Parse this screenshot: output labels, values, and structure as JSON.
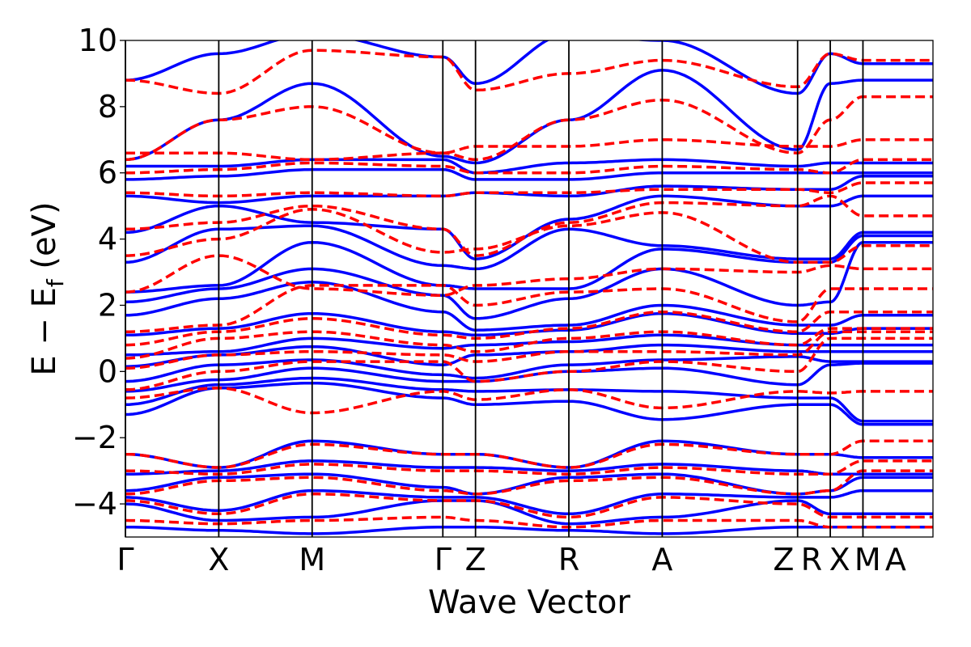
{
  "chart_data": {
    "type": "line",
    "title": "",
    "xlabel": "Wave Vector",
    "ylabel": "E − E_f (eV)",
    "ylabel_main": "E − E",
    "ylabel_sub": "f",
    "ylabel_unit": " (eV)",
    "ylim": [
      -5,
      10
    ],
    "grid": false,
    "legend": "none",
    "y_ticks": [
      -4,
      -2,
      0,
      2,
      4,
      6,
      8,
      10
    ],
    "y_tick_labels": [
      "−4",
      "−2",
      "0",
      "2",
      "4",
      "6",
      "8",
      "10"
    ],
    "kpoint_positions": [
      0,
      1,
      2,
      3.4,
      3.75,
      4.75,
      5.75,
      7.2,
      7.55,
      7.9
    ],
    "kpoint_labels": [
      "Γ",
      "X",
      "M",
      "Γ",
      "Z",
      "R",
      "A",
      "Z",
      "R",
      "X",
      "M",
      "A"
    ],
    "segments": [
      [
        0,
        1
      ],
      [
        1,
        2
      ],
      [
        2,
        3.4
      ],
      [
        3.4,
        3.75
      ],
      [
        3.75,
        4.75
      ],
      [
        4.75,
        5.75
      ],
      [
        5.75,
        7.2
      ],
      [
        7.55,
        7.9
      ],
      [
        7.9,
        7.9
      ]
    ],
    "colors": {
      "series_a": "#0000ff",
      "series_b": "#ff0000"
    },
    "series": [
      {
        "style": "solid",
        "color": "#0000ff",
        "bands": [
          [
            -1.3,
            -0.5,
            -0.35,
            -0.8,
            -1.0,
            -0.9,
            -1.45,
            -1.0,
            -1.0,
            -1.6
          ],
          [
            -1.0,
            -0.4,
            -0.2,
            -0.55,
            -0.6,
            -0.55,
            -0.6,
            -0.8,
            -0.8,
            -1.5
          ],
          [
            -0.6,
            -0.25,
            0.1,
            -0.3,
            -0.3,
            0.0,
            0.1,
            -0.4,
            0.2,
            0.25
          ],
          [
            -0.3,
            0.2,
            0.35,
            -0.1,
            -0.2,
            0.2,
            0.35,
            0.45,
            0.3,
            0.3
          ],
          [
            0.15,
            0.5,
            0.75,
            0.2,
            0.5,
            0.6,
            0.8,
            0.6,
            0.6,
            0.6
          ],
          [
            0.5,
            0.6,
            1.0,
            0.7,
            0.8,
            0.9,
            1.1,
            0.8,
            0.8,
            0.8
          ],
          [
            1.1,
            1.3,
            1.75,
            1.2,
            1.1,
            1.25,
            1.75,
            1.15,
            1.15,
            1.3
          ],
          [
            1.7,
            2.2,
            2.7,
            1.8,
            1.25,
            1.4,
            2.0,
            1.4,
            1.4,
            1.7
          ],
          [
            2.1,
            2.5,
            3.1,
            2.3,
            1.6,
            2.2,
            3.1,
            2.0,
            2.1,
            3.9
          ],
          [
            2.4,
            2.6,
            3.9,
            2.6,
            2.5,
            2.5,
            3.7,
            3.3,
            3.3,
            4.1
          ],
          [
            3.3,
            4.3,
            4.4,
            3.2,
            3.1,
            4.3,
            3.8,
            3.4,
            3.4,
            4.2
          ],
          [
            4.2,
            5.0,
            4.5,
            4.3,
            3.4,
            4.6,
            5.3,
            5.0,
            5.0,
            5.3
          ],
          [
            5.3,
            5.1,
            5.3,
            5.3,
            5.4,
            5.3,
            5.6,
            5.5,
            5.5,
            5.9
          ],
          [
            5.8,
            5.9,
            6.1,
            6.1,
            5.8,
            5.8,
            6.0,
            6.0,
            6.0,
            6.0
          ],
          [
            6.2,
            6.2,
            6.4,
            6.4,
            6.0,
            6.3,
            6.4,
            6.2,
            6.3,
            6.3
          ],
          [
            6.4,
            7.6,
            8.7,
            6.5,
            6.3,
            7.6,
            9.1,
            6.7,
            8.7,
            8.8
          ],
          [
            8.8,
            9.6,
            10.2,
            9.5,
            8.7,
            10.2,
            10.0,
            8.4,
            9.6,
            9.3
          ],
          [
            -2.5,
            -2.9,
            -2.1,
            -2.5,
            -2.5,
            -2.9,
            -2.1,
            -2.5,
            -2.5,
            -2.6
          ],
          [
            -3.1,
            -3.0,
            -2.7,
            -2.9,
            -2.9,
            -3.0,
            -2.8,
            -3.0,
            -3.1,
            -3.1
          ],
          [
            -3.6,
            -3.2,
            -3.1,
            -3.5,
            -3.7,
            -3.2,
            -3.1,
            -3.7,
            -3.6,
            -3.2
          ],
          [
            -3.8,
            -4.2,
            -3.6,
            -3.8,
            -3.8,
            -4.3,
            -3.7,
            -3.8,
            -3.8,
            -3.6
          ],
          [
            -4.0,
            -4.5,
            -4.4,
            -3.9,
            -3.9,
            -4.6,
            -4.4,
            -3.9,
            -4.3,
            -4.3
          ],
          [
            -4.7,
            -4.8,
            -4.9,
            -4.7,
            -4.7,
            -4.8,
            -4.9,
            -4.7,
            -4.7,
            -4.7
          ]
        ]
      },
      {
        "style": "dashed",
        "color": "#ff0000",
        "bands": [
          [
            -0.8,
            -0.5,
            -1.25,
            -0.6,
            -0.85,
            -0.55,
            -1.1,
            -0.6,
            -0.65,
            -0.6
          ],
          [
            -0.55,
            0.0,
            0.3,
            0.3,
            -0.3,
            0.0,
            0.3,
            0.0,
            1.0,
            1.0
          ],
          [
            0.1,
            0.5,
            0.6,
            0.5,
            0.3,
            0.6,
            0.6,
            0.5,
            1.2,
            1.2
          ],
          [
            0.4,
            1.0,
            1.2,
            0.8,
            0.6,
            1.0,
            1.2,
            0.8,
            1.3,
            1.3
          ],
          [
            0.8,
            1.2,
            1.6,
            1.1,
            1.0,
            1.3,
            1.8,
            1.2,
            1.8,
            1.8
          ],
          [
            1.2,
            1.4,
            2.6,
            2.6,
            2.0,
            2.4,
            2.5,
            1.5,
            2.5,
            2.5
          ],
          [
            2.4,
            3.5,
            2.5,
            2.3,
            2.6,
            2.8,
            3.1,
            3.0,
            3.2,
            3.1
          ],
          [
            3.5,
            4.0,
            4.9,
            3.6,
            3.7,
            4.4,
            4.8,
            3.3,
            3.3,
            3.8
          ],
          [
            4.3,
            4.5,
            5.0,
            4.3,
            3.5,
            4.5,
            5.1,
            5.0,
            5.3,
            4.7
          ],
          [
            5.4,
            5.3,
            5.4,
            5.3,
            5.4,
            5.4,
            5.5,
            5.5,
            5.4,
            5.7
          ],
          [
            6.0,
            6.1,
            6.3,
            6.2,
            6.0,
            6.0,
            6.2,
            6.1,
            6.0,
            6.4
          ],
          [
            6.6,
            6.6,
            6.4,
            6.6,
            6.8,
            6.8,
            7.0,
            6.8,
            6.8,
            7.0
          ],
          [
            6.4,
            7.6,
            8.0,
            6.6,
            6.4,
            7.6,
            8.2,
            6.6,
            7.6,
            8.3
          ],
          [
            8.8,
            8.4,
            9.7,
            9.5,
            8.5,
            9.0,
            9.4,
            8.6,
            9.6,
            9.4
          ],
          [
            -2.5,
            -2.9,
            -2.2,
            -2.5,
            -2.5,
            -2.9,
            -2.2,
            -2.5,
            -2.5,
            -2.1
          ],
          [
            -3.0,
            -3.1,
            -2.8,
            -3.0,
            -3.0,
            -3.1,
            -2.9,
            -3.1,
            -3.1,
            -2.7
          ],
          [
            -3.7,
            -3.3,
            -3.2,
            -3.6,
            -3.7,
            -3.3,
            -3.2,
            -3.7,
            -3.6,
            -3.0
          ],
          [
            -3.9,
            -4.3,
            -3.7,
            -3.9,
            -3.9,
            -4.4,
            -3.8,
            -4.0,
            -4.4,
            -4.4
          ],
          [
            -4.5,
            -4.6,
            -4.5,
            -4.4,
            -4.5,
            -4.7,
            -4.5,
            -4.5,
            -4.7,
            -4.7
          ]
        ]
      }
    ]
  }
}
